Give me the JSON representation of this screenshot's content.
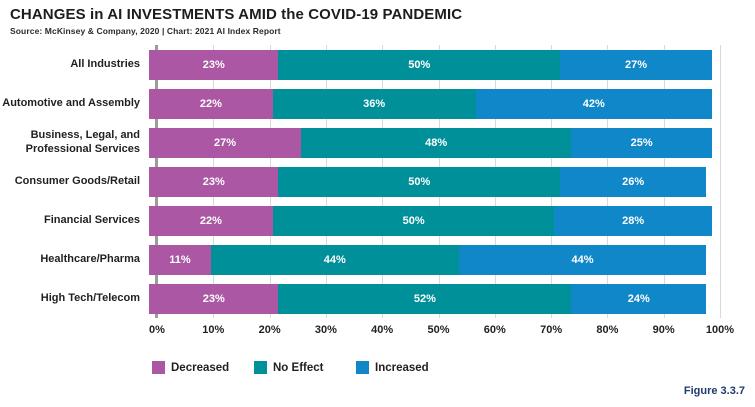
{
  "header": {
    "title": "CHANGES in AI INVESTMENTS AMID the COVID-19 PANDEMIC",
    "source": "Source: McKinsey & Company, 2020 | Chart: 2021 AI Index Report"
  },
  "footer": {
    "figure_label": "Figure 3.3.7"
  },
  "colors": {
    "decreased": "#ab57a4",
    "no_effect": "#00909a",
    "increased": "#0f87c8",
    "gridline": "#d9d9d9",
    "axis_line": "#9b9b9b",
    "bar_value_text": "#ffffff",
    "figure_label": "#1f3a6e",
    "text": "#231f20"
  },
  "chart_data": {
    "type": "bar",
    "orientation": "horizontal",
    "stacked": true,
    "title": "CHANGES in AI INVESTMENTS AMID the COVID-19 PANDEMIC",
    "categories": [
      "All Industries",
      "Automotive and Assembly",
      "Business, Legal, and Professional Services",
      "Consumer Goods/Retail",
      "Financial Services",
      "Healthcare/Pharma",
      "High Tech/Telecom"
    ],
    "series": [
      {
        "name": "Decreased",
        "color": "#ab57a4",
        "values": [
          23,
          22,
          27,
          23,
          22,
          11,
          23
        ]
      },
      {
        "name": "No Effect",
        "color": "#00909a",
        "values": [
          50,
          36,
          48,
          50,
          50,
          44,
          52
        ]
      },
      {
        "name": "Increased",
        "color": "#0f87c8",
        "values": [
          27,
          42,
          25,
          26,
          28,
          44,
          24
        ]
      }
    ],
    "x_ticks": [
      "0%",
      "10%",
      "20%",
      "30%",
      "40%",
      "50%",
      "60%",
      "70%",
      "80%",
      "90%",
      "100%"
    ],
    "xlim": [
      0,
      100
    ],
    "value_label_suffix": "%",
    "grid": "vertical",
    "legend_position": "bottom"
  }
}
